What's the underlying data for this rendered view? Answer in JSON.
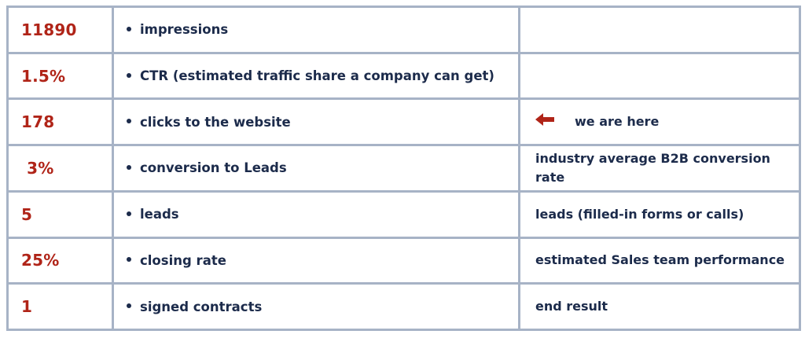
{
  "colors": {
    "value_red": "#b02418",
    "text_navy": "#1c2b4b",
    "border_gray": "#a7b3c6"
  },
  "rows": [
    {
      "value": "11890",
      "desc": "impressions",
      "note": ""
    },
    {
      "value": "1.5%",
      "desc": "CTR (estimated traffic share a company can get)",
      "note": ""
    },
    {
      "value": "178",
      "desc": "clicks to the website",
      "note": "we are here",
      "note_icon": "left-arrow-icon"
    },
    {
      "value": "3%",
      "desc": "conversion to Leads",
      "note": "industry average B2B conversion rate"
    },
    {
      "value": "5",
      "desc": "leads",
      "note": "leads (filled-in forms or calls)"
    },
    {
      "value": "25%",
      "desc": "closing rate",
      "note": "estimated Sales team performance"
    },
    {
      "value": "1",
      "desc": "signed contracts",
      "note": "end result"
    }
  ]
}
